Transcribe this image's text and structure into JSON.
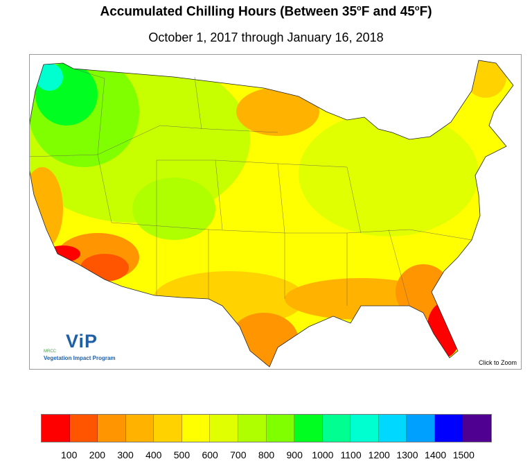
{
  "header": {
    "title_prefix": "Accumulated Chilling Hours (Between 35",
    "title_deg1": "o",
    "title_mid": "F and 45",
    "title_deg2": "o",
    "title_suffix": "F)",
    "subtitle": "October 1, 2017 through January 16, 2018"
  },
  "map": {
    "region": "Contiguous United States",
    "zoom_link": "Click to Zoom",
    "logo": {
      "main": "ViP",
      "org": "MRCC",
      "program": "Vegetation Impact Program"
    }
  },
  "legend": {
    "colors": [
      "#ff0000",
      "#ff5500",
      "#ff9500",
      "#ffb300",
      "#ffd200",
      "#ffff00",
      "#e0ff00",
      "#b0ff00",
      "#80ff00",
      "#00ff20",
      "#00ff90",
      "#00ffd0",
      "#00d8ff",
      "#00a0ff",
      "#0000ff",
      "#500090"
    ],
    "labels": [
      "100",
      "200",
      "300",
      "400",
      "500",
      "600",
      "700",
      "800",
      "900",
      "1000",
      "1100",
      "1200",
      "1300",
      "1400",
      "1500"
    ]
  }
}
